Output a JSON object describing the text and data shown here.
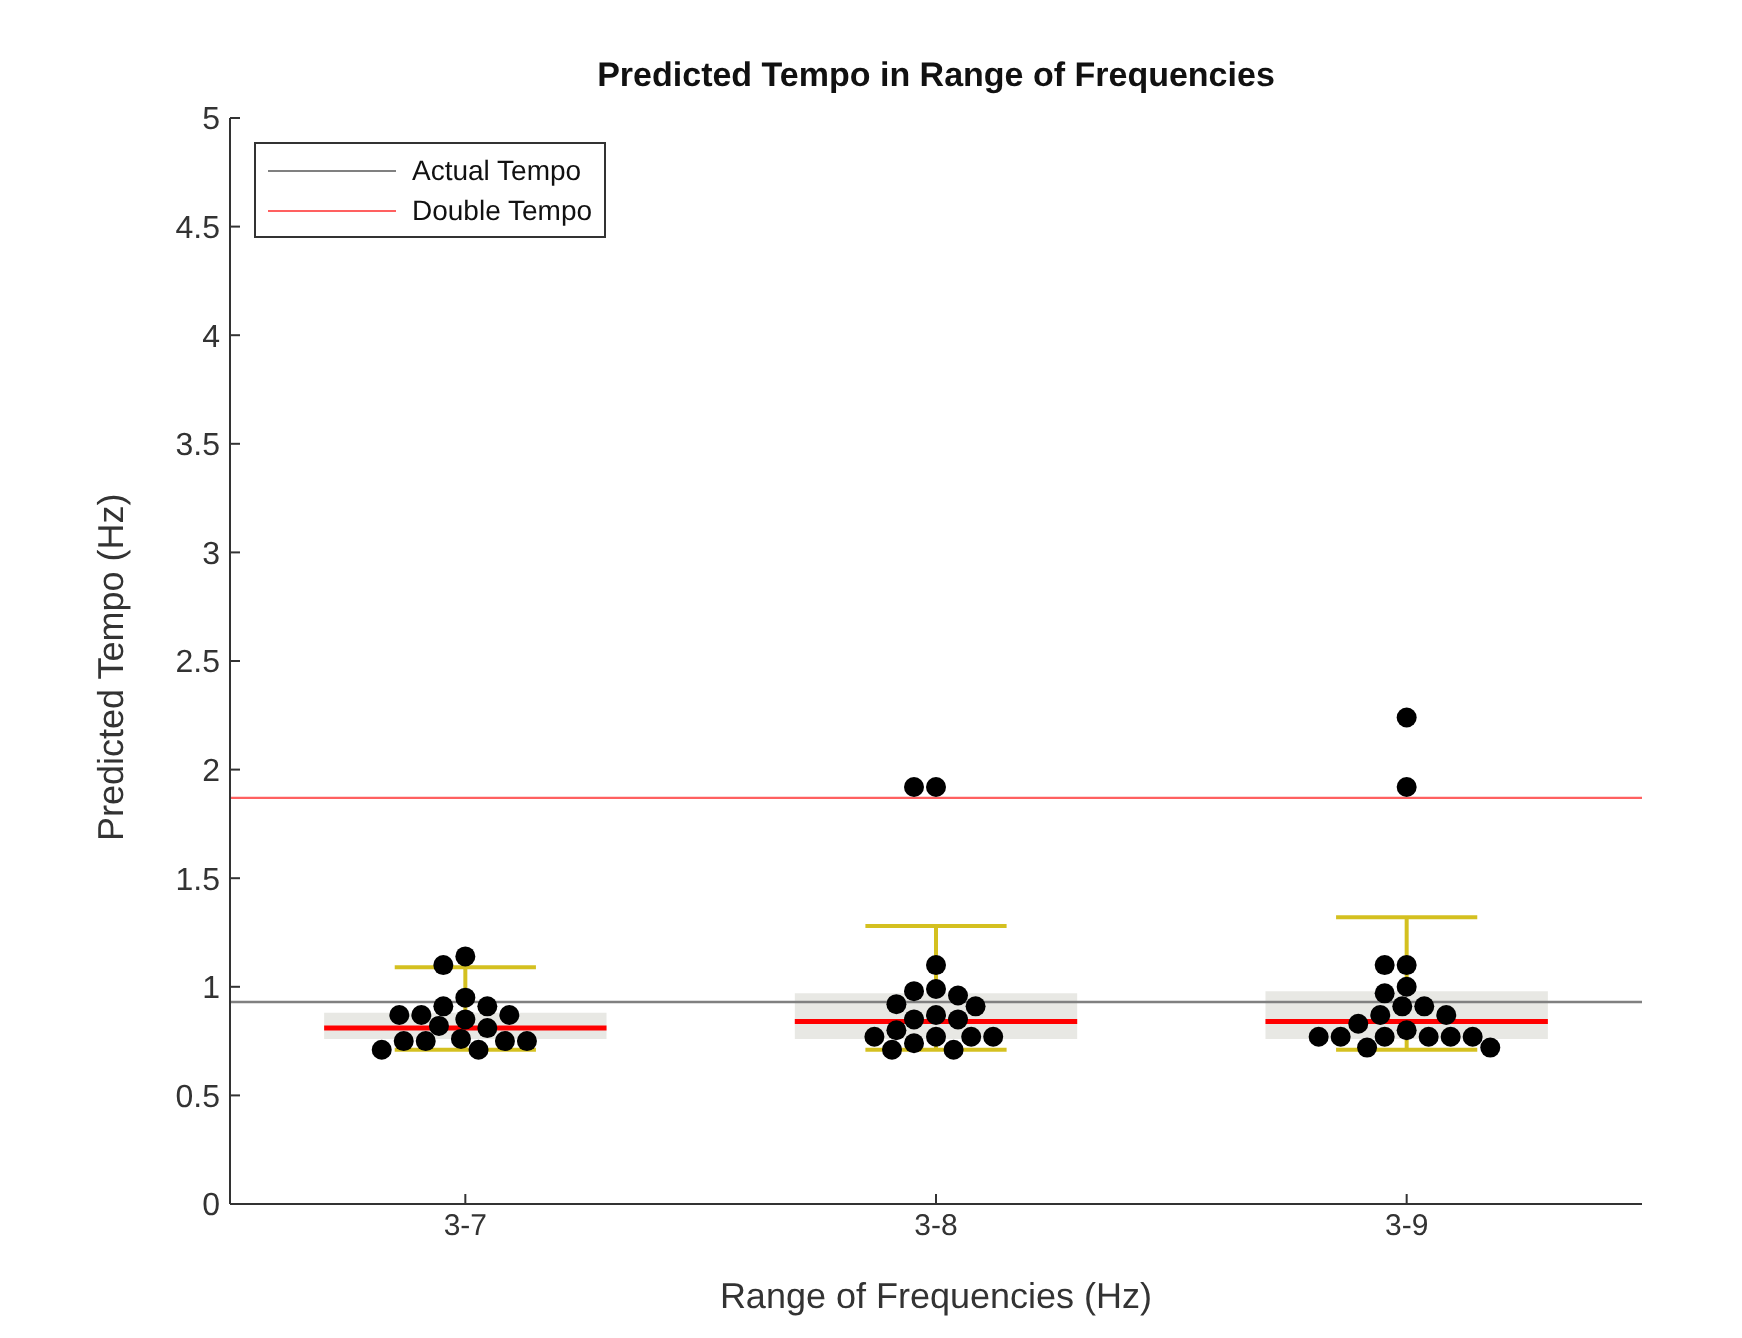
{
  "chart_data": {
    "type": "box",
    "title": "Predicted Tempo in Range of Frequencies",
    "xlabel": "Range of Frequencies (Hz)",
    "ylabel": "Predicted Tempo (Hz)",
    "categories": [
      "3-7",
      "3-8",
      "3-9"
    ],
    "boxes": [
      {
        "low": 0.71,
        "q1": 0.76,
        "median": 0.81,
        "q3": 0.88,
        "high": 1.09
      },
      {
        "low": 0.71,
        "q1": 0.76,
        "median": 0.84,
        "q3": 0.97,
        "high": 1.28
      },
      {
        "low": 0.71,
        "q1": 0.76,
        "median": 0.84,
        "q3": 0.98,
        "high": 1.32
      }
    ],
    "series": [
      {
        "type": "scatter",
        "color": "#000000",
        "x": [
          "3-7",
          "3-7",
          "3-7",
          "3-7",
          "3-7",
          "3-7",
          "3-7",
          "3-7",
          "3-7",
          "3-7",
          "3-7",
          "3-7",
          "3-7",
          "3-7",
          "3-7",
          "3-7",
          "3-7",
          "3-7",
          "3-8",
          "3-8",
          "3-8",
          "3-8",
          "3-8",
          "3-8",
          "3-8",
          "3-8",
          "3-8",
          "3-8",
          "3-8",
          "3-8",
          "3-8",
          "3-8",
          "3-8",
          "3-8",
          "3-8",
          "3-8",
          "3-8",
          "3-9",
          "3-9",
          "3-9",
          "3-9",
          "3-9",
          "3-9",
          "3-9",
          "3-9",
          "3-9",
          "3-9",
          "3-9",
          "3-9",
          "3-9",
          "3-9",
          "3-9",
          "3-9",
          "3-9",
          "3-9",
          "3-9",
          "3-9"
        ],
        "values": [
          1.14,
          1.1,
          0.95,
          0.91,
          0.91,
          0.87,
          0.87,
          0.87,
          0.85,
          0.82,
          0.81,
          0.76,
          0.75,
          0.75,
          0.75,
          0.75,
          0.71,
          0.71,
          1.92,
          1.92,
          1.1,
          0.99,
          0.98,
          0.96,
          0.92,
          0.91,
          0.87,
          0.85,
          0.85,
          0.8,
          0.77,
          0.77,
          0.77,
          0.77,
          0.74,
          0.71,
          0.71,
          2.24,
          1.92,
          1.1,
          1.1,
          1.0,
          0.97,
          0.91,
          0.91,
          0.87,
          0.87,
          0.83,
          0.8,
          0.77,
          0.77,
          0.77,
          0.77,
          0.77,
          0.77,
          0.72,
          0.72
        ]
      }
    ],
    "ref_lines": [
      {
        "axis": "y",
        "value": 0.93,
        "label": "Actual Tempo",
        "color": "#808080"
      },
      {
        "axis": "y",
        "value": 1.87,
        "label": "Double Tempo",
        "color": "#ff6060"
      }
    ],
    "ylim": [
      0,
      5
    ],
    "yticks": [
      0,
      0.5,
      1,
      1.5,
      2,
      2.5,
      3,
      3.5,
      4,
      4.5,
      5
    ],
    "legend": "top left",
    "marker": "circle"
  }
}
